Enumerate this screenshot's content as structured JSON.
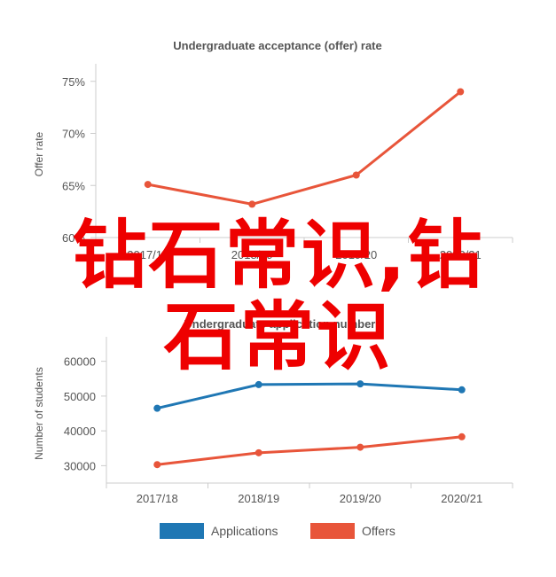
{
  "watermark": {
    "line1": "钻石常识,钻",
    "line2": "石常识"
  },
  "colors": {
    "applications": "#1f77b4",
    "offers": "#e8553a",
    "axis": "#cccccc",
    "text": "#555555",
    "watermark": "#ee0000"
  },
  "chart_data": [
    {
      "type": "line",
      "title": "Undergraduate acceptance (offer) rate",
      "ylabel": "Offer rate",
      "xlabel": "",
      "categories": [
        "2017/18",
        "2018/19",
        "2019/20",
        "2020/21"
      ],
      "series": [
        {
          "name": "",
          "values": [
            65.1,
            63.2,
            66.0,
            74.0
          ],
          "color": "#e8553a"
        }
      ],
      "ylim": [
        60,
        76
      ],
      "yticks": [
        60,
        65,
        70,
        75
      ],
      "ytick_labels": [
        "60%",
        "65%",
        "70%",
        "75%"
      ],
      "grid": false
    },
    {
      "type": "line",
      "title": "Undergraduate application numbers",
      "ylabel": "Number of students",
      "xlabel": "",
      "categories": [
        "2017/18",
        "2018/19",
        "2019/20",
        "2020/21"
      ],
      "series": [
        {
          "name": "Applications",
          "values": [
            46500,
            53300,
            53500,
            51800
          ],
          "color": "#1f77b4"
        },
        {
          "name": "Offers",
          "values": [
            30300,
            33700,
            35300,
            38300
          ],
          "color": "#e8553a"
        }
      ],
      "ylim": [
        25000,
        65000
      ],
      "yticks": [
        30000,
        40000,
        50000,
        60000
      ],
      "ytick_labels": [
        "30000",
        "40000",
        "50000",
        "60000"
      ],
      "legend": "bottom",
      "grid": false
    }
  ]
}
